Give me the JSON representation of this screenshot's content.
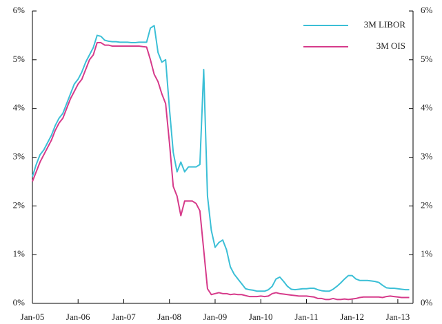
{
  "chart_data": {
    "type": "line",
    "x": [
      "2005-01",
      "2005-02",
      "2005-03",
      "2005-04",
      "2005-05",
      "2005-06",
      "2005-07",
      "2005-08",
      "2005-09",
      "2005-10",
      "2005-11",
      "2005-12",
      "2006-01",
      "2006-02",
      "2006-03",
      "2006-04",
      "2006-05",
      "2006-06",
      "2006-07",
      "2006-08",
      "2006-09",
      "2006-10",
      "2006-11",
      "2006-12",
      "2007-01",
      "2007-02",
      "2007-03",
      "2007-04",
      "2007-05",
      "2007-06",
      "2007-07",
      "2007-08",
      "2007-09",
      "2007-10",
      "2007-11",
      "2007-12",
      "2008-01",
      "2008-02",
      "2008-03",
      "2008-04",
      "2008-05",
      "2008-06",
      "2008-07",
      "2008-08",
      "2008-09",
      "2008-10",
      "2008-11",
      "2008-12",
      "2009-01",
      "2009-02",
      "2009-03",
      "2009-04",
      "2009-05",
      "2009-06",
      "2009-07",
      "2009-08",
      "2009-09",
      "2009-10",
      "2009-11",
      "2009-12",
      "2010-01",
      "2010-02",
      "2010-03",
      "2010-04",
      "2010-05",
      "2010-06",
      "2010-07",
      "2010-08",
      "2010-09",
      "2010-10",
      "2010-11",
      "2010-12",
      "2011-01",
      "2011-02",
      "2011-03",
      "2011-04",
      "2011-05",
      "2011-06",
      "2011-07",
      "2011-08",
      "2011-09",
      "2011-10",
      "2011-11",
      "2011-12",
      "2012-01",
      "2012-02",
      "2012-03",
      "2012-04",
      "2012-05",
      "2012-06",
      "2012-07",
      "2012-08",
      "2012-09",
      "2012-10",
      "2012-11",
      "2012-12",
      "2013-01",
      "2013-02",
      "2013-03",
      "2013-04"
    ],
    "series": [
      {
        "name": "3M LIBOR",
        "color": "#3bbfd6",
        "values": [
          2.6,
          2.85,
          3.05,
          3.15,
          3.3,
          3.45,
          3.65,
          3.8,
          3.9,
          4.1,
          4.3,
          4.5,
          4.6,
          4.75,
          4.95,
          5.1,
          5.25,
          5.5,
          5.48,
          5.4,
          5.38,
          5.37,
          5.37,
          5.36,
          5.36,
          5.36,
          5.35,
          5.35,
          5.36,
          5.36,
          5.36,
          5.65,
          5.7,
          5.15,
          4.95,
          5.0,
          4.0,
          3.1,
          2.7,
          2.9,
          2.7,
          2.8,
          2.8,
          2.8,
          2.85,
          4.8,
          2.2,
          1.5,
          1.15,
          1.25,
          1.3,
          1.1,
          0.75,
          0.6,
          0.5,
          0.4,
          0.3,
          0.28,
          0.27,
          0.25,
          0.25,
          0.25,
          0.28,
          0.35,
          0.5,
          0.54,
          0.45,
          0.35,
          0.29,
          0.28,
          0.29,
          0.3,
          0.3,
          0.31,
          0.31,
          0.28,
          0.26,
          0.25,
          0.25,
          0.29,
          0.35,
          0.42,
          0.5,
          0.57,
          0.57,
          0.5,
          0.47,
          0.47,
          0.47,
          0.46,
          0.45,
          0.43,
          0.37,
          0.32,
          0.31,
          0.31,
          0.3,
          0.29,
          0.28,
          0.28
        ]
      },
      {
        "name": "3M OIS",
        "color": "#d63a8a",
        "values": [
          2.5,
          2.7,
          2.9,
          3.05,
          3.2,
          3.35,
          3.55,
          3.7,
          3.8,
          4.0,
          4.2,
          4.35,
          4.5,
          4.6,
          4.8,
          5.0,
          5.1,
          5.35,
          5.35,
          5.3,
          5.3,
          5.28,
          5.28,
          5.28,
          5.28,
          5.28,
          5.28,
          5.28,
          5.28,
          5.27,
          5.26,
          5.0,
          4.7,
          4.55,
          4.3,
          4.1,
          3.3,
          2.4,
          2.2,
          1.8,
          2.1,
          2.1,
          2.1,
          2.05,
          1.9,
          1.1,
          0.3,
          0.18,
          0.2,
          0.22,
          0.2,
          0.2,
          0.18,
          0.19,
          0.18,
          0.18,
          0.16,
          0.14,
          0.14,
          0.14,
          0.15,
          0.14,
          0.15,
          0.2,
          0.22,
          0.2,
          0.19,
          0.18,
          0.17,
          0.16,
          0.15,
          0.15,
          0.15,
          0.14,
          0.13,
          0.1,
          0.1,
          0.08,
          0.08,
          0.1,
          0.08,
          0.08,
          0.09,
          0.08,
          0.09,
          0.1,
          0.12,
          0.13,
          0.13,
          0.13,
          0.13,
          0.13,
          0.12,
          0.14,
          0.15,
          0.14,
          0.13,
          0.12,
          0.12,
          0.12
        ]
      }
    ],
    "xlim": [
      "2005-01",
      "2013-05"
    ],
    "xticks": [
      {
        "value": "2005-01",
        "label": "Jan-05"
      },
      {
        "value": "2006-01",
        "label": "Jan-06"
      },
      {
        "value": "2007-01",
        "label": "Jan-07"
      },
      {
        "value": "2008-01",
        "label": "Jan-08"
      },
      {
        "value": "2009-01",
        "label": "Jan-09"
      },
      {
        "value": "2010-01",
        "label": "Jan-10"
      },
      {
        "value": "2011-01",
        "label": "Jan-11"
      },
      {
        "value": "2012-01",
        "label": "Jan-12"
      },
      {
        "value": "2013-01",
        "label": "Jan-13"
      }
    ],
    "ylim": [
      0,
      6
    ],
    "yticks": [
      {
        "value": 0,
        "label": "0%"
      },
      {
        "value": 1,
        "label": "1%"
      },
      {
        "value": 2,
        "label": "2%"
      },
      {
        "value": 3,
        "label": "3%"
      },
      {
        "value": 4,
        "label": "4%"
      },
      {
        "value": 5,
        "label": "5%"
      },
      {
        "value": 6,
        "label": "6%"
      }
    ],
    "y2lim": [
      0,
      6
    ],
    "y2ticks": [
      {
        "value": 0,
        "label": "0%"
      },
      {
        "value": 1,
        "label": "1%"
      },
      {
        "value": 2,
        "label": "2%"
      },
      {
        "value": 3,
        "label": "3%"
      },
      {
        "value": 4,
        "label": "4%"
      },
      {
        "value": 5,
        "label": "5%"
      },
      {
        "value": 6,
        "label": "6%"
      }
    ],
    "legend": "top-right"
  }
}
